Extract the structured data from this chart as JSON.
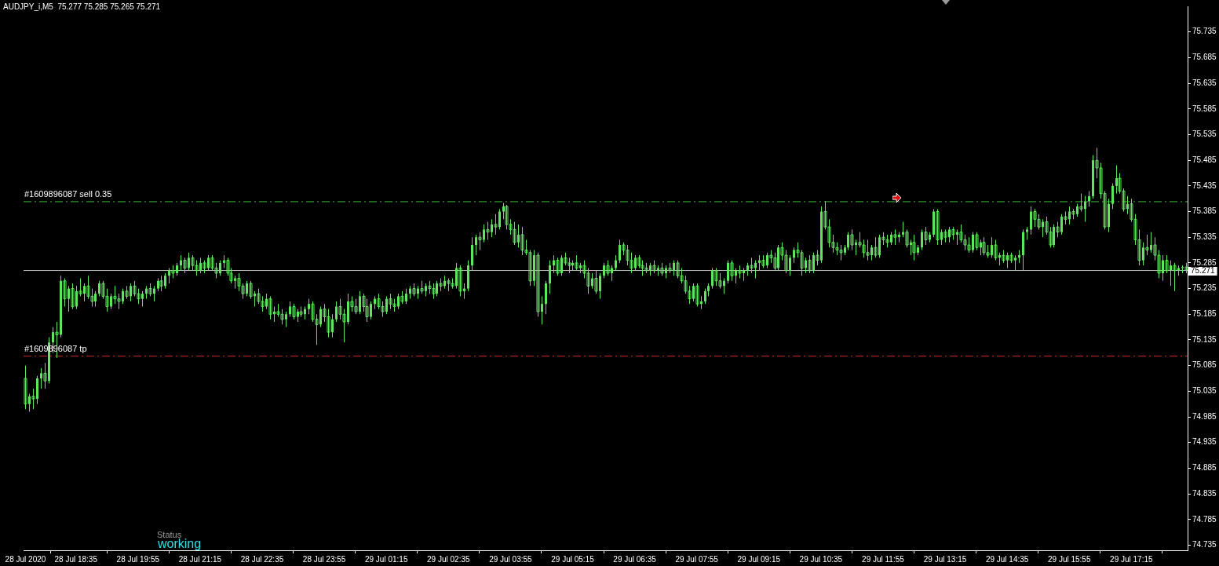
{
  "chart_data": {
    "type": "candlestick",
    "title": "AUDJPY_i,M5  75.277 75.285 75.265 75.271",
    "color": "#5ee65e",
    "categories": [
      "28 Jul 2020",
      null,
      null,
      null,
      null,
      null,
      null,
      null,
      null,
      null,
      null,
      null,
      null,
      "28 Jul 18:35",
      null,
      null,
      null,
      null,
      null,
      null,
      null,
      null,
      null,
      null,
      null,
      null,
      null,
      null,
      null,
      "28 Jul 19:55",
      null,
      null,
      null,
      null,
      null,
      null,
      null,
      null,
      null,
      null,
      null,
      null,
      null,
      null,
      null,
      "28 Jul 21:15",
      null,
      null,
      null,
      null,
      null,
      null,
      null,
      null,
      null,
      null,
      null,
      null,
      null,
      null,
      null,
      "28 Jul 22:35",
      null,
      null,
      null,
      null,
      null,
      null,
      null,
      null,
      null,
      null,
      null,
      null,
      null,
      null,
      null,
      "28 Jul 23:55",
      null,
      null,
      null,
      null,
      null,
      null,
      null,
      null,
      null,
      null,
      null,
      null,
      null,
      null,
      null,
      "29 Jul 01:15",
      null,
      null,
      null,
      null,
      null,
      null,
      null,
      null,
      null,
      null,
      null,
      null,
      null,
      null,
      null,
      "29 Jul 02:35",
      null,
      null,
      null,
      null,
      null,
      null,
      null,
      null,
      null,
      null,
      null,
      null,
      null,
      null,
      null,
      "29 Jul 03:55",
      null,
      null,
      null,
      null,
      null,
      null,
      null,
      null,
      null,
      null,
      null,
      null,
      null,
      null,
      null,
      "29 Jul 05:15",
      null,
      null,
      null,
      null,
      null,
      null,
      null,
      null,
      null,
      null,
      null,
      null,
      null,
      null,
      null,
      "29 Jul 06:35",
      null,
      null,
      null,
      null,
      null,
      null,
      null,
      null,
      null,
      null,
      null,
      null,
      null,
      null,
      null,
      "29 Jul 07:55",
      null,
      null,
      null,
      null,
      null,
      null,
      null,
      null,
      null,
      null,
      null,
      null,
      null,
      null,
      null,
      "29 Jul 09:15",
      null,
      null,
      null,
      null,
      null,
      null,
      null,
      null,
      null,
      null,
      null,
      null,
      null,
      null,
      null,
      "29 Jul 10:35",
      null,
      null,
      null,
      null,
      null,
      null,
      null,
      null,
      null,
      null,
      null,
      null,
      null,
      null,
      null,
      "29 Jul 11:55",
      null,
      null,
      null,
      null,
      null,
      null,
      null,
      null,
      null,
      null,
      null,
      null,
      null,
      null,
      null,
      "29 Jul 13:15",
      null,
      null,
      null,
      null,
      null,
      null,
      null,
      null,
      null,
      null,
      null,
      null,
      null,
      null,
      null,
      "29 Jul 14:35",
      null,
      null,
      null,
      null,
      null,
      null,
      null,
      null,
      null,
      null,
      null,
      null,
      null,
      null,
      null,
      "29 Jul 15:55",
      null,
      null,
      null,
      null,
      null,
      null,
      null,
      null,
      null,
      null,
      null,
      null,
      null,
      null,
      null,
      "29 Jul 17:15",
      null,
      null,
      null,
      null,
      null,
      null,
      null,
      null,
      null,
      null,
      null,
      null,
      null,
      null
    ],
    "ohlc": [
      [
        75.06,
        75.085,
        75.0,
        75.01
      ],
      [
        75.01,
        75.03,
        74.995,
        75.025
      ],
      [
        75.025,
        75.04,
        75.0,
        75.02
      ],
      [
        75.02,
        75.065,
        75.01,
        75.06
      ],
      [
        75.06,
        75.08,
        75.04,
        75.07
      ],
      [
        75.07,
        75.09,
        75.04,
        75.055
      ],
      [
        75.055,
        75.14,
        75.05,
        75.13
      ],
      [
        75.13,
        75.16,
        75.11,
        75.15
      ],
      [
        75.15,
        75.17,
        75.1,
        75.145
      ],
      [
        75.145,
        75.26,
        75.14,
        75.25
      ],
      [
        75.25,
        75.255,
        75.2,
        75.215
      ],
      [
        75.215,
        75.24,
        75.19,
        75.235
      ],
      [
        75.235,
        75.245,
        75.195,
        75.2
      ],
      [
        75.2,
        75.24,
        75.195,
        75.23
      ],
      [
        75.23,
        75.255,
        75.22,
        75.225
      ],
      [
        75.225,
        75.245,
        75.21,
        75.24
      ],
      [
        75.24,
        75.26,
        75.215,
        75.22
      ],
      [
        75.22,
        75.235,
        75.2,
        75.21
      ],
      [
        75.21,
        75.23,
        75.2,
        75.225
      ],
      [
        75.225,
        75.25,
        75.22,
        75.245
      ],
      [
        75.245,
        75.25,
        75.215,
        75.22
      ],
      [
        75.22,
        75.235,
        75.19,
        75.2
      ],
      [
        75.2,
        75.225,
        75.195,
        75.22
      ],
      [
        75.22,
        75.24,
        75.205,
        75.215
      ],
      [
        75.215,
        75.225,
        75.195,
        75.21
      ],
      [
        75.21,
        75.235,
        75.205,
        75.23
      ],
      [
        75.23,
        75.24,
        75.215,
        75.22
      ],
      [
        75.22,
        75.245,
        75.21,
        75.24
      ],
      [
        75.24,
        75.25,
        75.22,
        75.225
      ],
      [
        75.225,
        75.235,
        75.205,
        75.215
      ],
      [
        75.215,
        75.23,
        75.2,
        75.225
      ],
      [
        75.225,
        75.24,
        75.215,
        75.235
      ],
      [
        75.235,
        75.245,
        75.22,
        75.225
      ],
      [
        75.225,
        75.24,
        75.21,
        75.235
      ],
      [
        75.235,
        75.255,
        75.23,
        75.25
      ],
      [
        75.25,
        75.26,
        75.23,
        75.24
      ],
      [
        75.24,
        75.265,
        75.235,
        75.26
      ],
      [
        75.26,
        75.275,
        75.245,
        75.27
      ],
      [
        75.27,
        75.28,
        75.255,
        75.265
      ],
      [
        75.265,
        75.285,
        75.26,
        75.28
      ],
      [
        75.28,
        75.3,
        75.27,
        75.29
      ],
      [
        75.29,
        75.295,
        75.265,
        75.275
      ],
      [
        75.275,
        75.305,
        75.27,
        75.295
      ],
      [
        75.295,
        75.3,
        75.27,
        75.28
      ],
      [
        75.28,
        75.29,
        75.26,
        75.27
      ],
      [
        75.27,
        75.295,
        75.265,
        75.285
      ],
      [
        75.285,
        75.29,
        75.265,
        75.275
      ],
      [
        75.275,
        75.3,
        75.27,
        75.295
      ],
      [
        75.295,
        75.3,
        75.27,
        75.275
      ],
      [
        75.275,
        75.285,
        75.255,
        75.265
      ],
      [
        75.265,
        75.29,
        75.26,
        75.285
      ],
      [
        75.285,
        75.3,
        75.275,
        75.29
      ],
      [
        75.29,
        75.295,
        75.26,
        75.265
      ],
      [
        75.265,
        75.275,
        75.245,
        75.25
      ],
      [
        75.25,
        75.26,
        75.235,
        75.255
      ],
      [
        75.255,
        75.265,
        75.23,
        75.24
      ],
      [
        75.24,
        75.245,
        75.215,
        75.225
      ],
      [
        75.225,
        75.25,
        75.22,
        75.245
      ],
      [
        75.245,
        75.25,
        75.215,
        75.22
      ],
      [
        75.22,
        75.23,
        75.2,
        75.225
      ],
      [
        75.225,
        75.235,
        75.205,
        75.21
      ],
      [
        75.21,
        75.22,
        75.19,
        75.2
      ],
      [
        75.2,
        75.225,
        75.195,
        75.215
      ],
      [
        75.215,
        75.22,
        75.175,
        75.185
      ],
      [
        75.185,
        75.2,
        75.17,
        75.19
      ],
      [
        75.19,
        75.205,
        75.18,
        75.185
      ],
      [
        75.185,
        75.195,
        75.165,
        75.175
      ],
      [
        75.175,
        75.19,
        75.16,
        75.185
      ],
      [
        75.185,
        75.21,
        75.18,
        75.2
      ],
      [
        75.2,
        75.205,
        75.175,
        75.18
      ],
      [
        75.18,
        75.195,
        75.17,
        75.19
      ],
      [
        75.19,
        75.2,
        75.18,
        75.185
      ],
      [
        75.185,
        75.2,
        75.175,
        75.195
      ],
      [
        75.195,
        75.215,
        75.185,
        75.205
      ],
      [
        75.205,
        75.21,
        75.17,
        75.175
      ],
      [
        75.175,
        75.185,
        75.125,
        75.165
      ],
      [
        75.165,
        75.2,
        75.16,
        75.195
      ],
      [
        75.195,
        75.205,
        75.17,
        75.18
      ],
      [
        75.18,
        75.195,
        75.14,
        75.15
      ],
      [
        75.15,
        75.185,
        75.14,
        75.175
      ],
      [
        75.175,
        75.21,
        75.17,
        75.2
      ],
      [
        75.2,
        75.215,
        75.175,
        75.185
      ],
      [
        75.185,
        75.195,
        75.13,
        75.17
      ],
      [
        75.17,
        75.225,
        75.165,
        75.21
      ],
      [
        75.21,
        75.22,
        75.19,
        75.2
      ],
      [
        75.2,
        75.215,
        75.185,
        75.19
      ],
      [
        75.19,
        75.23,
        75.185,
        75.22
      ],
      [
        75.22,
        75.225,
        75.19,
        75.2
      ],
      [
        75.2,
        75.215,
        75.17,
        75.18
      ],
      [
        75.18,
        75.21,
        75.175,
        75.205
      ],
      [
        75.205,
        75.22,
        75.195,
        75.215
      ],
      [
        75.215,
        75.225,
        75.195,
        75.2
      ],
      [
        75.2,
        75.21,
        75.18,
        75.19
      ],
      [
        75.19,
        75.22,
        75.185,
        75.215
      ],
      [
        75.215,
        75.225,
        75.195,
        75.205
      ],
      [
        75.205,
        75.215,
        75.19,
        75.2
      ],
      [
        75.2,
        75.225,
        75.195,
        75.22
      ],
      [
        75.22,
        75.23,
        75.205,
        75.21
      ],
      [
        75.21,
        75.235,
        75.205,
        75.225
      ],
      [
        75.225,
        75.24,
        75.215,
        75.235
      ],
      [
        75.235,
        75.245,
        75.22,
        75.225
      ],
      [
        75.225,
        75.24,
        75.215,
        75.235
      ],
      [
        75.235,
        75.25,
        75.225,
        75.23
      ],
      [
        75.23,
        75.245,
        75.22,
        75.24
      ],
      [
        75.24,
        75.25,
        75.225,
        75.235
      ],
      [
        75.235,
        75.245,
        75.215,
        75.225
      ],
      [
        75.225,
        75.25,
        75.22,
        75.245
      ],
      [
        75.245,
        75.255,
        75.23,
        75.24
      ],
      [
        75.24,
        75.26,
        75.235,
        75.25
      ],
      [
        75.25,
        75.255,
        75.23,
        75.245
      ],
      [
        75.245,
        75.255,
        75.235,
        75.24
      ],
      [
        75.24,
        75.285,
        75.235,
        75.275
      ],
      [
        75.275,
        75.28,
        75.22,
        75.23
      ],
      [
        75.23,
        75.245,
        75.215,
        75.235
      ],
      [
        75.235,
        75.29,
        75.23,
        75.28
      ],
      [
        75.28,
        75.335,
        75.27,
        75.32
      ],
      [
        75.32,
        75.34,
        75.3,
        75.335
      ],
      [
        75.335,
        75.345,
        75.31,
        75.33
      ],
      [
        75.33,
        75.36,
        75.325,
        75.35
      ],
      [
        75.35,
        75.365,
        75.33,
        75.345
      ],
      [
        75.345,
        75.37,
        75.335,
        75.36
      ],
      [
        75.36,
        75.38,
        75.34,
        75.355
      ],
      [
        75.355,
        75.39,
        75.35,
        75.385
      ],
      [
        75.385,
        75.402,
        75.37,
        75.395
      ],
      [
        75.395,
        75.398,
        75.35,
        75.36
      ],
      [
        75.36,
        75.37,
        75.34,
        75.35
      ],
      [
        75.35,
        75.365,
        75.32,
        75.325
      ],
      [
        75.325,
        75.36,
        75.315,
        75.34
      ],
      [
        75.34,
        75.355,
        75.3,
        75.31
      ],
      [
        75.31,
        75.33,
        75.3,
        75.305
      ],
      [
        75.305,
        75.31,
        75.24,
        75.25
      ],
      [
        75.25,
        75.31,
        75.24,
        75.3
      ],
      [
        75.3,
        75.305,
        75.18,
        75.19
      ],
      [
        75.19,
        75.22,
        75.165,
        75.205
      ],
      [
        75.205,
        75.25,
        75.185,
        75.245
      ],
      [
        75.245,
        75.29,
        75.225,
        75.28
      ],
      [
        75.28,
        75.3,
        75.265,
        75.29
      ],
      [
        75.29,
        75.295,
        75.26,
        75.265
      ],
      [
        75.265,
        75.3,
        75.26,
        75.295
      ],
      [
        75.295,
        75.305,
        75.28,
        75.285
      ],
      [
        75.285,
        75.295,
        75.265,
        75.28
      ],
      [
        75.28,
        75.29,
        75.27,
        75.285
      ],
      [
        75.285,
        75.3,
        75.27,
        75.275
      ],
      [
        75.275,
        75.285,
        75.265,
        75.28
      ],
      [
        75.28,
        75.29,
        75.255,
        75.265
      ],
      [
        75.265,
        75.275,
        75.225,
        75.24
      ],
      [
        75.24,
        75.265,
        75.235,
        75.255
      ],
      [
        75.255,
        75.27,
        75.225,
        75.23
      ],
      [
        75.23,
        75.265,
        75.215,
        75.26
      ],
      [
        75.26,
        75.285,
        75.255,
        75.28
      ],
      [
        75.28,
        75.29,
        75.26,
        75.265
      ],
      [
        75.265,
        75.28,
        75.25,
        75.275
      ],
      [
        75.275,
        75.3,
        75.27,
        75.29
      ],
      [
        75.29,
        75.33,
        75.285,
        75.32
      ],
      [
        75.32,
        75.325,
        75.3,
        75.31
      ],
      [
        75.31,
        75.32,
        75.28,
        75.29
      ],
      [
        75.29,
        75.305,
        75.265,
        75.275
      ],
      [
        75.275,
        75.3,
        75.27,
        75.295
      ],
      [
        75.295,
        75.3,
        75.275,
        75.28
      ],
      [
        75.28,
        75.29,
        75.26,
        75.275
      ],
      [
        75.275,
        75.285,
        75.265,
        75.27
      ],
      [
        75.27,
        75.285,
        75.26,
        75.28
      ],
      [
        75.28,
        75.29,
        75.265,
        75.27
      ],
      [
        75.27,
        75.28,
        75.26,
        75.275
      ],
      [
        75.275,
        75.285,
        75.26,
        75.265
      ],
      [
        75.265,
        75.28,
        75.255,
        75.275
      ],
      [
        75.275,
        75.285,
        75.265,
        75.27
      ],
      [
        75.27,
        75.29,
        75.26,
        75.285
      ],
      [
        75.285,
        75.29,
        75.255,
        75.26
      ],
      [
        75.26,
        75.275,
        75.245,
        75.25
      ],
      [
        75.25,
        75.26,
        75.225,
        75.23
      ],
      [
        75.23,
        75.24,
        75.205,
        75.215
      ],
      [
        75.215,
        75.245,
        75.21,
        75.24
      ],
      [
        75.24,
        75.245,
        75.2,
        75.205
      ],
      [
        75.205,
        75.22,
        75.195,
        75.21
      ],
      [
        75.21,
        75.235,
        75.205,
        75.23
      ],
      [
        75.23,
        75.245,
        75.22,
        75.24
      ],
      [
        75.24,
        75.275,
        75.235,
        75.27
      ],
      [
        75.27,
        75.275,
        75.24,
        75.25
      ],
      [
        75.25,
        75.265,
        75.235,
        75.24
      ],
      [
        75.24,
        75.255,
        75.225,
        75.25
      ],
      [
        75.25,
        75.29,
        75.245,
        75.285
      ],
      [
        75.285,
        75.29,
        75.25,
        75.26
      ],
      [
        75.26,
        75.275,
        75.245,
        75.27
      ],
      [
        75.27,
        75.28,
        75.255,
        75.265
      ],
      [
        75.265,
        75.275,
        75.25,
        75.27
      ],
      [
        75.27,
        75.285,
        75.26,
        75.28
      ],
      [
        75.28,
        75.295,
        75.265,
        75.275
      ],
      [
        75.275,
        75.29,
        75.255,
        75.285
      ],
      [
        75.285,
        75.3,
        75.27,
        75.29
      ],
      [
        75.29,
        75.3,
        75.275,
        75.28
      ],
      [
        75.28,
        75.305,
        75.275,
        75.3
      ],
      [
        75.3,
        75.31,
        75.285,
        75.295
      ],
      [
        75.295,
        75.305,
        75.27,
        75.275
      ],
      [
        75.275,
        75.32,
        75.27,
        75.315
      ],
      [
        75.315,
        75.325,
        75.29,
        75.3
      ],
      [
        75.3,
        75.31,
        75.265,
        75.27
      ],
      [
        75.27,
        75.3,
        75.26,
        75.295
      ],
      [
        75.295,
        75.315,
        75.285,
        75.31
      ],
      [
        75.31,
        75.325,
        75.295,
        75.305
      ],
      [
        75.305,
        75.31,
        75.26,
        75.275
      ],
      [
        75.275,
        75.295,
        75.265,
        75.29
      ],
      [
        75.29,
        75.3,
        75.265,
        75.27
      ],
      [
        75.27,
        75.305,
        75.265,
        75.3
      ],
      [
        75.3,
        75.31,
        75.28,
        75.29
      ],
      [
        75.29,
        75.395,
        75.285,
        75.385
      ],
      [
        75.385,
        75.405,
        75.35,
        75.355
      ],
      [
        75.355,
        75.37,
        75.315,
        75.325
      ],
      [
        75.325,
        75.34,
        75.305,
        75.315
      ],
      [
        75.315,
        75.325,
        75.3,
        75.31
      ],
      [
        75.31,
        75.32,
        75.29,
        75.305
      ],
      [
        75.305,
        75.32,
        75.3,
        75.315
      ],
      [
        75.315,
        75.345,
        75.31,
        75.34
      ],
      [
        75.34,
        75.35,
        75.31,
        75.32
      ],
      [
        75.32,
        75.33,
        75.3,
        75.325
      ],
      [
        75.325,
        75.345,
        75.315,
        75.32
      ],
      [
        75.32,
        75.33,
        75.295,
        75.305
      ],
      [
        75.305,
        75.33,
        75.29,
        75.3
      ],
      [
        75.3,
        75.32,
        75.29,
        75.315
      ],
      [
        75.315,
        75.335,
        75.295,
        75.3
      ],
      [
        75.3,
        75.34,
        75.295,
        75.335
      ],
      [
        75.335,
        75.345,
        75.32,
        75.33
      ],
      [
        75.33,
        75.34,
        75.315,
        75.325
      ],
      [
        75.325,
        75.345,
        75.32,
        75.34
      ],
      [
        75.34,
        75.35,
        75.32,
        75.335
      ],
      [
        75.335,
        75.345,
        75.325,
        75.34
      ],
      [
        75.34,
        75.365,
        75.335,
        75.345
      ],
      [
        75.345,
        75.35,
        75.315,
        75.32
      ],
      [
        75.32,
        75.33,
        75.3,
        75.325
      ],
      [
        75.325,
        75.34,
        75.29,
        75.305
      ],
      [
        75.305,
        75.32,
        75.3,
        75.315
      ],
      [
        75.315,
        75.35,
        75.31,
        75.345
      ],
      [
        75.345,
        75.355,
        75.32,
        75.33
      ],
      [
        75.33,
        75.345,
        75.325,
        75.34
      ],
      [
        75.34,
        75.39,
        75.335,
        75.385
      ],
      [
        75.385,
        75.39,
        75.32,
        75.33
      ],
      [
        75.33,
        75.35,
        75.32,
        75.345
      ],
      [
        75.345,
        75.35,
        75.325,
        75.335
      ],
      [
        75.335,
        75.355,
        75.325,
        75.35
      ],
      [
        75.35,
        75.355,
        75.33,
        75.34
      ],
      [
        75.34,
        75.35,
        75.32,
        75.345
      ],
      [
        75.345,
        75.36,
        75.325,
        75.33
      ],
      [
        75.33,
        75.34,
        75.31,
        75.32
      ],
      [
        75.32,
        75.335,
        75.305,
        75.31
      ],
      [
        75.31,
        75.345,
        75.305,
        75.34
      ],
      [
        75.34,
        75.345,
        75.31,
        75.315
      ],
      [
        75.315,
        75.33,
        75.3,
        75.325
      ],
      [
        75.325,
        75.335,
        75.3,
        75.305
      ],
      [
        75.305,
        75.32,
        75.295,
        75.3
      ],
      [
        75.3,
        75.335,
        75.295,
        75.32
      ],
      [
        75.32,
        75.33,
        75.29,
        75.295
      ],
      [
        75.295,
        75.305,
        75.28,
        75.3
      ],
      [
        75.3,
        75.31,
        75.285,
        75.29
      ],
      [
        75.29,
        75.305,
        75.275,
        75.3
      ],
      [
        75.3,
        75.305,
        75.285,
        75.29
      ],
      [
        75.29,
        75.3,
        75.27,
        75.295
      ],
      [
        75.295,
        75.31,
        75.285,
        75.3
      ],
      [
        75.3,
        75.35,
        75.27,
        75.345
      ],
      [
        75.345,
        75.355,
        75.33,
        75.35
      ],
      [
        75.35,
        75.395,
        75.34,
        75.385
      ],
      [
        75.385,
        75.39,
        75.355,
        75.37
      ],
      [
        75.37,
        75.38,
        75.35,
        75.355
      ],
      [
        75.355,
        75.37,
        75.335,
        75.365
      ],
      [
        75.365,
        75.375,
        75.34,
        75.345
      ],
      [
        75.345,
        75.355,
        75.315,
        75.32
      ],
      [
        75.32,
        75.36,
        75.315,
        75.355
      ],
      [
        75.355,
        75.365,
        75.335,
        75.345
      ],
      [
        75.345,
        75.38,
        75.34,
        75.375
      ],
      [
        75.375,
        75.385,
        75.36,
        75.37
      ],
      [
        75.37,
        75.395,
        75.36,
        75.385
      ],
      [
        75.385,
        75.39,
        75.37,
        75.38
      ],
      [
        75.38,
        75.4,
        75.375,
        75.395
      ],
      [
        75.395,
        75.42,
        75.385,
        75.39
      ],
      [
        75.39,
        75.415,
        75.365,
        75.405
      ],
      [
        75.405,
        75.425,
        75.395,
        75.415
      ],
      [
        75.415,
        75.495,
        75.41,
        75.485
      ],
      [
        75.485,
        75.509,
        75.45,
        75.47
      ],
      [
        75.47,
        75.48,
        75.41,
        75.42
      ],
      [
        75.42,
        75.425,
        75.35,
        75.355
      ],
      [
        75.355,
        75.41,
        75.345,
        75.4
      ],
      [
        75.4,
        75.44,
        75.39,
        75.435
      ],
      [
        75.435,
        75.475,
        75.42,
        75.45
      ],
      [
        75.45,
        75.46,
        75.42,
        75.425
      ],
      [
        75.425,
        75.43,
        75.385,
        75.39
      ],
      [
        75.39,
        75.415,
        75.38,
        75.4
      ],
      [
        75.4,
        75.41,
        75.365,
        75.37
      ],
      [
        75.37,
        75.38,
        75.32,
        75.33
      ],
      [
        75.33,
        75.35,
        75.28,
        75.29
      ],
      [
        75.29,
        75.325,
        75.28,
        75.315
      ],
      [
        75.315,
        75.34,
        75.3,
        75.31
      ],
      [
        75.31,
        75.345,
        75.305,
        75.32
      ],
      [
        75.32,
        75.335,
        75.29,
        75.3
      ],
      [
        75.3,
        75.31,
        75.255,
        75.265
      ],
      [
        75.265,
        75.3,
        75.25,
        75.29
      ],
      [
        75.29,
        75.3,
        75.265,
        75.27
      ],
      [
        75.27,
        75.29,
        75.24,
        75.28
      ],
      [
        75.28,
        75.285,
        75.23,
        75.27
      ],
      [
        75.27,
        75.28,
        75.26,
        75.275
      ],
      [
        75.275,
        75.28,
        75.265,
        75.277
      ],
      [
        75.277,
        75.285,
        75.265,
        75.271
      ]
    ],
    "ylim": [
      74.725,
      75.785
    ],
    "yticks": [
      74.735,
      74.785,
      74.835,
      74.885,
      74.935,
      74.985,
      75.035,
      75.085,
      75.135,
      75.185,
      75.235,
      75.285,
      75.335,
      75.385,
      75.435,
      75.485,
      75.535,
      75.585,
      75.635,
      75.685,
      75.735
    ],
    "ref_lines": [
      {
        "axis": "y",
        "value": 75.405,
        "label": "#1609896087 sell 0.35",
        "color": "#3cb83c",
        "line_style": "dashed"
      },
      {
        "axis": "y",
        "value": 75.104,
        "label": "#1609896087 tp",
        "color": "#d42a2a",
        "line_style": "dashed"
      },
      {
        "axis": "y",
        "value": 75.271,
        "label": "75.271",
        "color": "#c0c0c0",
        "line_style": "solid"
      }
    ],
    "annotations": [
      "Status",
      "working"
    ]
  }
}
